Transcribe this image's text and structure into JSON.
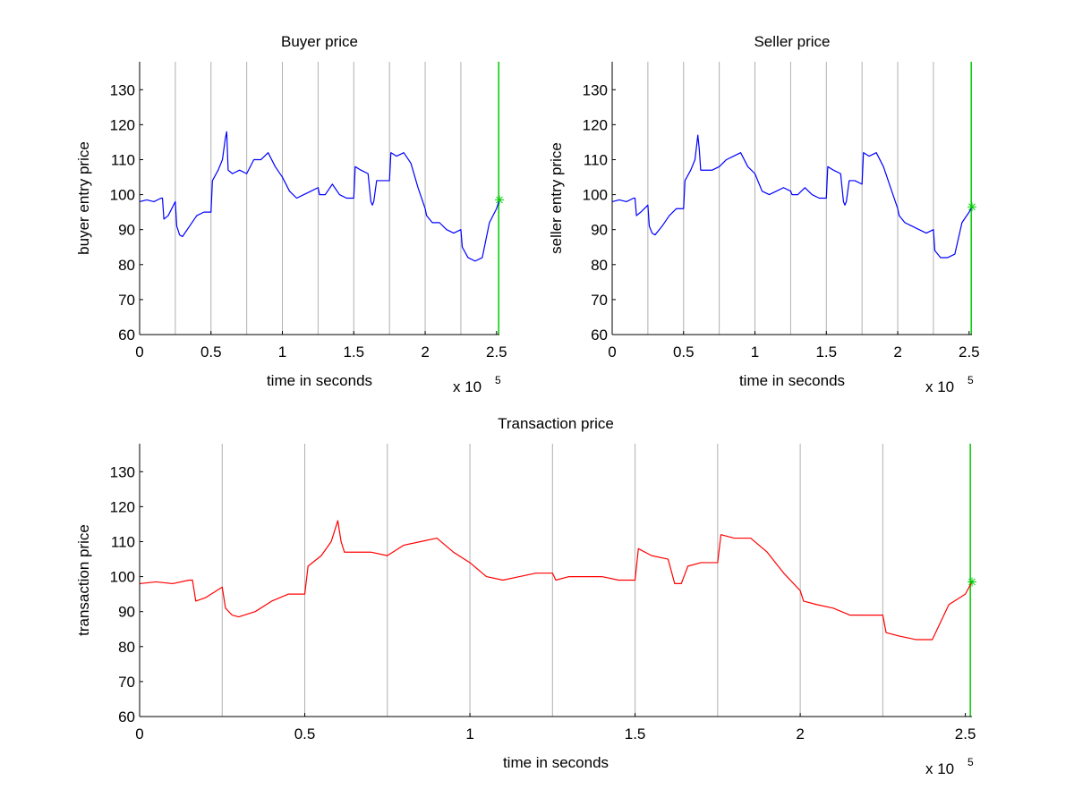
{
  "chart_data": [
    {
      "type": "line",
      "title": "Buyer price",
      "xlabel": "time in seconds",
      "ylabel": "buyer entry price",
      "x_exponent_label": "x 10",
      "x_exponent_power": "5",
      "xlim": [
        0,
        2.52
      ],
      "ylim": [
        60,
        138
      ],
      "xticks": [
        0,
        0.5,
        1,
        1.5,
        2,
        2.5
      ],
      "xtick_labels": [
        "0",
        "0.5",
        "1",
        "1.5",
        "2",
        "2.5"
      ],
      "yticks": [
        60,
        70,
        80,
        90,
        100,
        110,
        120,
        130
      ],
      "ytick_labels": [
        "60",
        "70",
        "80",
        "90",
        "100",
        "110",
        "120",
        "130"
      ],
      "vlines": [
        0.25,
        0.5,
        0.75,
        1.0,
        1.25,
        1.5,
        1.75,
        2.0,
        2.25
      ],
      "end_line_x": 2.515,
      "end_marker": {
        "x": 2.52,
        "y": 98.5,
        "color": "#00cc00"
      },
      "grid_color": "#b0b0b0",
      "series": [
        {
          "color": "#0000ff",
          "x": [
            0,
            0.05,
            0.1,
            0.15,
            0.16,
            0.17,
            0.2,
            0.25,
            0.26,
            0.28,
            0.3,
            0.35,
            0.4,
            0.45,
            0.5,
            0.51,
            0.55,
            0.58,
            0.6,
            0.61,
            0.62,
            0.65,
            0.7,
            0.75,
            0.8,
            0.85,
            0.9,
            0.95,
            1.0,
            1.05,
            1.1,
            1.15,
            1.2,
            1.25,
            1.26,
            1.3,
            1.35,
            1.4,
            1.45,
            1.5,
            1.51,
            1.55,
            1.6,
            1.62,
            1.63,
            1.64,
            1.66,
            1.7,
            1.75,
            1.76,
            1.8,
            1.85,
            1.9,
            1.95,
            2.0,
            2.01,
            2.05,
            2.1,
            2.15,
            2.2,
            2.25,
            2.26,
            2.3,
            2.35,
            2.4,
            2.45,
            2.5,
            2.52
          ],
          "y": [
            98,
            98.5,
            98,
            99,
            99,
            93,
            94,
            98,
            91,
            88.5,
            88,
            91,
            94,
            95,
            95,
            104,
            107,
            110,
            116,
            118,
            107,
            106,
            107,
            106,
            110,
            110,
            112,
            108,
            105,
            101,
            99,
            100,
            101,
            102,
            100,
            100,
            103,
            100,
            99,
            99,
            108,
            107,
            106,
            98,
            97,
            98,
            104,
            104,
            104,
            112,
            111,
            112,
            109,
            102,
            96,
            94,
            92,
            92,
            90,
            89,
            90,
            85,
            82,
            81,
            82,
            92,
            96,
            98.5
          ]
        }
      ]
    },
    {
      "type": "line",
      "title": "Seller price",
      "xlabel": "time in seconds",
      "ylabel": "seller entry price",
      "x_exponent_label": "x 10",
      "x_exponent_power": "5",
      "xlim": [
        0,
        2.52
      ],
      "ylim": [
        60,
        138
      ],
      "xticks": [
        0,
        0.5,
        1,
        1.5,
        2,
        2.5
      ],
      "xtick_labels": [
        "0",
        "0.5",
        "1",
        "1.5",
        "2",
        "2.5"
      ],
      "yticks": [
        60,
        70,
        80,
        90,
        100,
        110,
        120,
        130
      ],
      "ytick_labels": [
        "60",
        "70",
        "80",
        "90",
        "100",
        "110",
        "120",
        "130"
      ],
      "vlines": [
        0.25,
        0.5,
        0.75,
        1.0,
        1.25,
        1.5,
        1.75,
        2.0,
        2.25
      ],
      "end_line_x": 2.515,
      "end_marker": {
        "x": 2.52,
        "y": 96.5,
        "color": "#00cc00"
      },
      "grid_color": "#b0b0b0",
      "series": [
        {
          "color": "#0000ff",
          "x": [
            0,
            0.05,
            0.1,
            0.15,
            0.16,
            0.17,
            0.2,
            0.25,
            0.26,
            0.28,
            0.3,
            0.35,
            0.4,
            0.45,
            0.5,
            0.51,
            0.55,
            0.58,
            0.6,
            0.61,
            0.62,
            0.65,
            0.7,
            0.75,
            0.8,
            0.85,
            0.9,
            0.95,
            1.0,
            1.05,
            1.1,
            1.15,
            1.2,
            1.25,
            1.26,
            1.3,
            1.35,
            1.4,
            1.45,
            1.5,
            1.51,
            1.55,
            1.6,
            1.62,
            1.63,
            1.64,
            1.66,
            1.7,
            1.75,
            1.76,
            1.8,
            1.85,
            1.9,
            1.95,
            2.0,
            2.01,
            2.05,
            2.1,
            2.15,
            2.2,
            2.25,
            2.26,
            2.3,
            2.35,
            2.4,
            2.45,
            2.5,
            2.52
          ],
          "y": [
            98,
            98.5,
            98,
            99,
            99,
            94,
            95,
            97,
            91,
            89,
            88.5,
            91,
            94,
            96,
            96,
            104,
            107,
            110,
            117,
            113,
            107,
            107,
            107,
            108,
            110,
            111,
            112,
            108,
            106,
            101,
            100,
            101,
            102,
            101,
            100,
            100,
            102,
            100,
            99,
            99,
            108,
            107,
            106,
            98,
            97,
            98,
            104,
            104,
            103,
            112,
            111,
            112,
            108,
            102,
            96,
            94,
            92,
            91,
            90,
            89,
            90,
            84,
            82,
            82,
            83,
            92,
            95,
            96.5
          ]
        }
      ]
    },
    {
      "type": "line",
      "title": "Transaction price",
      "xlabel": "time in seconds",
      "ylabel": "transaction price",
      "x_exponent_label": "x 10",
      "x_exponent_power": "5",
      "xlim": [
        0,
        2.52
      ],
      "ylim": [
        60,
        138
      ],
      "xticks": [
        0,
        0.5,
        1,
        1.5,
        2,
        2.5
      ],
      "xtick_labels": [
        "0",
        "0.5",
        "1",
        "1.5",
        "2",
        "2.5"
      ],
      "yticks": [
        60,
        70,
        80,
        90,
        100,
        110,
        120,
        130
      ],
      "ytick_labels": [
        "60",
        "70",
        "80",
        "90",
        "100",
        "110",
        "120",
        "130"
      ],
      "vlines": [
        0.25,
        0.5,
        0.75,
        1.0,
        1.25,
        1.5,
        1.75,
        2.0,
        2.25
      ],
      "end_line_x": 2.515,
      "end_marker": {
        "x": 2.52,
        "y": 98.5,
        "color": "#00cc00"
      },
      "grid_color": "#b0b0b0",
      "series": [
        {
          "color": "#ff0000",
          "x": [
            0,
            0.05,
            0.1,
            0.15,
            0.16,
            0.17,
            0.2,
            0.25,
            0.26,
            0.28,
            0.3,
            0.35,
            0.4,
            0.45,
            0.5,
            0.51,
            0.55,
            0.58,
            0.6,
            0.61,
            0.62,
            0.65,
            0.7,
            0.75,
            0.8,
            0.85,
            0.9,
            0.95,
            1.0,
            1.05,
            1.1,
            1.15,
            1.2,
            1.25,
            1.26,
            1.3,
            1.35,
            1.4,
            1.45,
            1.5,
            1.51,
            1.55,
            1.6,
            1.62,
            1.63,
            1.64,
            1.66,
            1.7,
            1.75,
            1.76,
            1.8,
            1.85,
            1.9,
            1.95,
            2.0,
            2.01,
            2.05,
            2.1,
            2.15,
            2.2,
            2.25,
            2.26,
            2.3,
            2.35,
            2.4,
            2.45,
            2.5,
            2.52
          ],
          "y": [
            98,
            98.5,
            98,
            99,
            99,
            93,
            94,
            97,
            91,
            89,
            88.5,
            90,
            93,
            95,
            95,
            103,
            106,
            110,
            116,
            110,
            107,
            107,
            107,
            106,
            109,
            110,
            111,
            107,
            104,
            100,
            99,
            100,
            101,
            101,
            99,
            100,
            100,
            100,
            99,
            99,
            108,
            106,
            105,
            98,
            98,
            98,
            103,
            104,
            104,
            112,
            111,
            111,
            107,
            101,
            96,
            93,
            92,
            91,
            89,
            89,
            89,
            84,
            83,
            82,
            82,
            92,
            95,
            98.5
          ]
        }
      ]
    }
  ]
}
